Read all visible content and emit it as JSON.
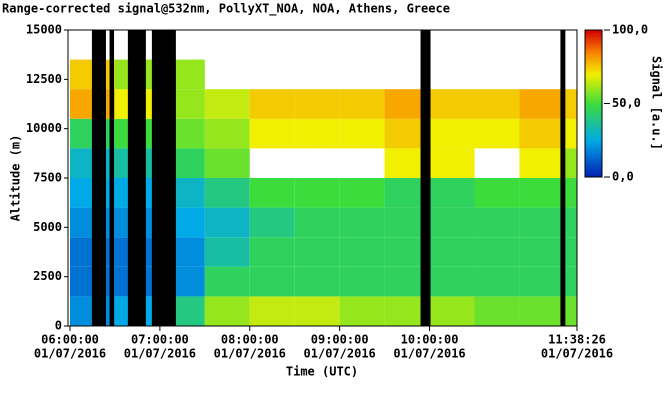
{
  "chart_data": {
    "type": "heatmap",
    "title": "Range-corrected signal@532nm, PollyXT_NOA, NOA, Athens, Greece",
    "x_label": "Time (UTC)",
    "y_label": "Altitude (m)",
    "colorbar_label": "Signal [a.u.]",
    "xlim": [
      6,
      11.6406
    ],
    "ylim": [
      0,
      15000
    ],
    "xticks": [
      {
        "value": 6,
        "label": "06:00:00"
      },
      {
        "value": 7,
        "label": "07:00:00"
      },
      {
        "value": 8,
        "label": "08:00:00"
      },
      {
        "value": 9,
        "label": "09:00:00"
      },
      {
        "value": 10,
        "label": "10:00:00"
      },
      {
        "value": 11.6406,
        "label": "11:38:26"
      }
    ],
    "xtick_dates": [
      "01/07/2016",
      "01/07/2016",
      "01/07/2016",
      "01/07/2016",
      "01/07/2016",
      "01/07/2016"
    ],
    "yticks": [
      0,
      2500,
      5000,
      7500,
      10000,
      12500,
      15000
    ],
    "clim": [
      0,
      100
    ],
    "cticks": [
      {
        "value": 0,
        "label": "0,0"
      },
      {
        "value": 50,
        "label": "50,0"
      },
      {
        "value": 100,
        "label": "100,0"
      }
    ],
    "x_edges": [
      6,
      6.5,
      7,
      7.5,
      8,
      8.5,
      9,
      9.5,
      10,
      10.5,
      11,
      11.5,
      11.6406
    ],
    "y_edges": [
      0,
      1500,
      3000,
      4500,
      6000,
      7500,
      9000,
      10500,
      12000,
      13500,
      15000
    ],
    "z": [
      [
        20,
        25,
        40,
        60,
        65,
        65,
        60,
        60,
        60,
        55,
        55,
        55
      ],
      [
        15,
        15,
        20,
        45,
        45,
        45,
        45,
        45,
        45,
        45,
        45,
        45
      ],
      [
        15,
        15,
        20,
        35,
        45,
        45,
        45,
        45,
        45,
        45,
        45,
        45
      ],
      [
        20,
        20,
        25,
        30,
        40,
        45,
        45,
        45,
        45,
        45,
        45,
        45
      ],
      [
        25,
        25,
        30,
        40,
        50,
        50,
        50,
        45,
        45,
        50,
        50,
        50
      ],
      [
        30,
        35,
        45,
        55,
        null,
        null,
        null,
        70,
        70,
        null,
        70,
        60
      ],
      [
        45,
        50,
        55,
        60,
        70,
        70,
        70,
        75,
        70,
        70,
        75,
        70
      ],
      [
        80,
        70,
        60,
        65,
        75,
        75,
        75,
        80,
        75,
        75,
        80,
        75
      ],
      [
        75,
        60,
        60,
        null,
        null,
        null,
        null,
        null,
        null,
        null,
        null,
        null
      ],
      [
        null,
        null,
        null,
        null,
        null,
        null,
        null,
        null,
        null,
        null,
        null,
        null
      ]
    ],
    "no_data": [
      [
        6.244,
        6.4
      ],
      [
        6.44,
        6.49
      ],
      [
        6.644,
        6.844
      ],
      [
        6.911,
        7.178
      ],
      [
        9.9,
        10.011
      ],
      [
        11.456,
        11.511
      ]
    ]
  }
}
